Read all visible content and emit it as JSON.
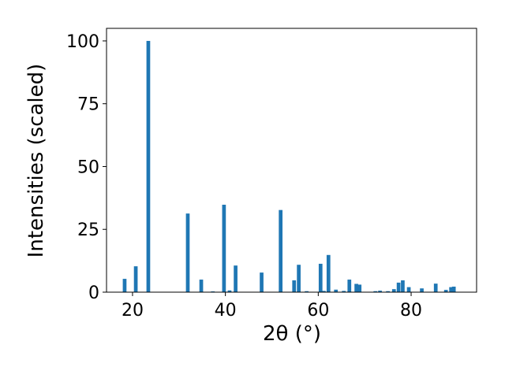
{
  "chart_data": {
    "type": "bar",
    "x": [
      18.3,
      20.7,
      23.4,
      31.9,
      34.8,
      37.3,
      39.7,
      40.9,
      42.2,
      47.8,
      51.9,
      54.8,
      55.8,
      57.5,
      60.5,
      61.2,
      62.2,
      63.8,
      65.5,
      66.7,
      68.2,
      68.9,
      72.3,
      73.3,
      75.0,
      76.3,
      77.3,
      78.2,
      79.5,
      82.3,
      85.3,
      87.5,
      88.6,
      89.2
    ],
    "values": [
      5.3,
      10.3,
      100,
      31.3,
      5,
      0.3,
      34.8,
      0.7,
      10.6,
      7.8,
      32.7,
      4.7,
      10.9,
      0.4,
      11.3,
      0.5,
      14.8,
      1,
      0.5,
      5,
      3.3,
      3,
      0.4,
      0.6,
      0.4,
      1.2,
      3.8,
      4.7,
      2,
      1.5,
      3.4,
      0.9,
      2,
      2.2
    ],
    "color": "#1f77b4",
    "xlabel": "2θ (°)",
    "ylabel": "Intensities (scaled)",
    "xlim": [
      14.4,
      94.1
    ],
    "xticks": [
      20,
      40,
      60,
      80
    ],
    "ylim": [
      0,
      105
    ],
    "yticks": [
      0,
      25,
      50,
      75,
      100
    ],
    "grid": false
  }
}
